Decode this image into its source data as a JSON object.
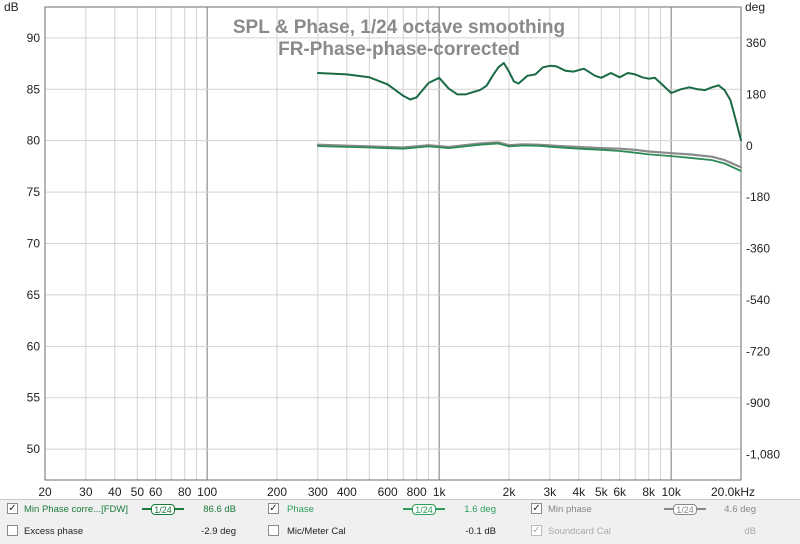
{
  "chart_data": {
    "type": "line",
    "title": "SPL & Phase, 1/24 octave smoothing",
    "subtitle": "FR-Phase-phase-corrected",
    "left_axis": {
      "unit": "dB",
      "ylim": [
        47,
        93
      ],
      "ticks": [
        90,
        85,
        80,
        75,
        70,
        65,
        60,
        55,
        50
      ],
      "tick_labels": [
        "90",
        "85",
        "80",
        "75",
        "70",
        "65",
        "60",
        "55",
        "50"
      ]
    },
    "right_axis": {
      "unit": "deg",
      "ylim": [
        -1170,
        486
      ],
      "ticks": [
        360,
        180,
        0,
        -180,
        -360,
        -540,
        -720,
        -900,
        -1080
      ],
      "tick_labels": [
        "360",
        "180",
        "0",
        "-180",
        "-360",
        "-540",
        "-720",
        "-900",
        "-1,080"
      ]
    },
    "x_axis": {
      "scale": "log",
      "unit": "Hz",
      "xlim": [
        20,
        20000
      ],
      "ticks": [
        20,
        30,
        40,
        50,
        60,
        80,
        100,
        200,
        300,
        400,
        600,
        800,
        1000,
        2000,
        3000,
        4000,
        5000,
        6000,
        8000,
        10000,
        20000
      ],
      "tick_labels": [
        "20",
        "30",
        "40",
        "50",
        "60",
        "80",
        "100",
        "200",
        "300",
        "400",
        "600",
        "800",
        "1k",
        "2k",
        "3k",
        "4k",
        "5k",
        "6k",
        "8k",
        "10k",
        "20.0kHz"
      ]
    },
    "grid": true,
    "series": [
      {
        "name": "Phase",
        "axis": "right",
        "color": "#1a6a45",
        "x": [
          300,
          400,
          500,
          600,
          700,
          750,
          800,
          900,
          1000,
          1100,
          1200,
          1300,
          1400,
          1500,
          1600,
          1700,
          1800,
          1900,
          2000,
          2100,
          2200,
          2400,
          2600,
          2800,
          3000,
          3200,
          3500,
          3800,
          4200,
          4700,
          5000,
          5500,
          6000,
          6500,
          7000,
          7500,
          8000,
          8500,
          9000,
          10000,
          11000,
          12000,
          13000,
          14000,
          15000,
          16000,
          17000,
          18000,
          19000,
          20000
        ],
        "y": [
          255,
          250,
          240,
          215,
          175,
          162,
          170,
          220,
          238,
          200,
          180,
          180,
          188,
          195,
          210,
          245,
          275,
          290,
          260,
          225,
          218,
          245,
          250,
          275,
          280,
          278,
          263,
          260,
          270,
          245,
          238,
          255,
          240,
          255,
          250,
          240,
          235,
          238,
          220,
          185,
          198,
          205,
          198,
          195,
          205,
          212,
          195,
          160,
          90,
          20
        ]
      },
      {
        "name": "Min phase",
        "axis": "right",
        "color": "#8a8a8a",
        "x": [
          300,
          500,
          700,
          900,
          1100,
          1500,
          1800,
          2000,
          2300,
          2700,
          3200,
          4000,
          5000,
          6000,
          7000,
          8000,
          10000,
          12000,
          15000,
          17000,
          20000
        ],
        "y": [
          4,
          -2,
          -6,
          2,
          -4,
          8,
          12,
          2,
          5,
          4,
          0,
          -4,
          -8,
          -10,
          -14,
          -20,
          -26,
          -30,
          -38,
          -50,
          -75
        ]
      },
      {
        "name": "Min Phase corre...[FDW]",
        "axis": "right",
        "color": "#2e8b57",
        "x": [
          300,
          500,
          700,
          900,
          1100,
          1500,
          1800,
          2000,
          2300,
          2700,
          3200,
          4000,
          5000,
          6000,
          7000,
          8000,
          10000,
          12000,
          15000,
          17000,
          20000
        ],
        "y": [
          -1,
          -6,
          -10,
          -2,
          -8,
          4,
          8,
          -2,
          1,
          0,
          -5,
          -10,
          -14,
          -18,
          -24,
          -30,
          -36,
          -42,
          -50,
          -62,
          -88
        ]
      }
    ]
  },
  "legend": {
    "row1": [
      {
        "checked": "✓",
        "name": "Min Phase corre...[FDW]",
        "smoothing": "1/24",
        "value": "86.6 dB",
        "color": "#1a7a3a",
        "enabled": true
      },
      {
        "checked": "✓",
        "name": "Phase",
        "smoothing": "1/24",
        "value": "1.6 deg",
        "color": "#2e9e5a",
        "enabled": true
      },
      {
        "checked": "✓",
        "name": "Min phase",
        "smoothing": "1/24",
        "value": "4.6 deg",
        "color": "#888888",
        "enabled": true
      }
    ],
    "row2": [
      {
        "checked": "",
        "name": "Excess phase",
        "value": "-2.9 deg",
        "enabled": true
      },
      {
        "checked": "",
        "name": "Mic/Meter Cal",
        "value": "-0.1 dB",
        "enabled": true
      },
      {
        "checked": "✓",
        "name": "Soundcard Cal",
        "value": "dB",
        "enabled": false
      }
    ]
  }
}
